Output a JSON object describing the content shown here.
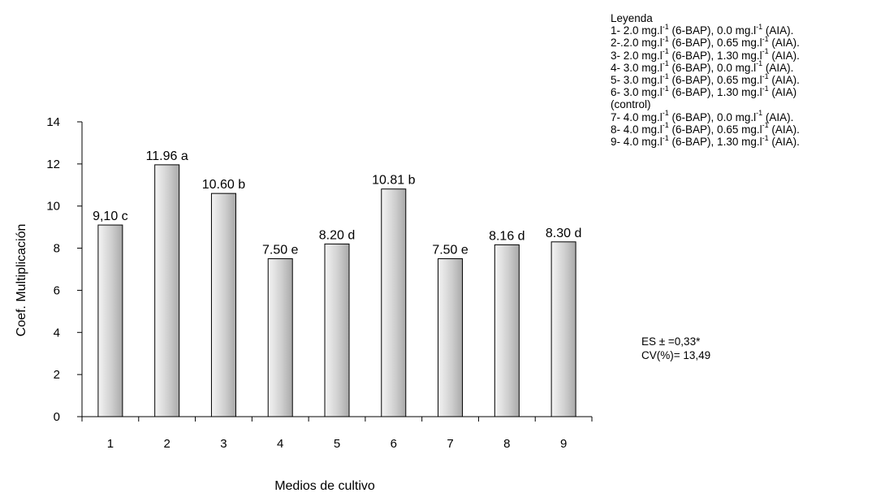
{
  "chart_data": {
    "type": "bar",
    "categories": [
      "1",
      "2",
      "3",
      "4",
      "5",
      "6",
      "7",
      "8",
      "9"
    ],
    "values": [
      9.1,
      11.96,
      10.6,
      7.5,
      8.2,
      10.81,
      7.5,
      8.16,
      8.3
    ],
    "bar_labels": [
      "9,10 c",
      "11.96 a",
      "10.60 b",
      "7.50 e",
      "8.20 d",
      "10.81 b",
      "7.50 e",
      "8.16 d",
      "8.30 d"
    ],
    "title": "",
    "xlabel": "Medios de cultivo",
    "ylabel": "Coef. Multiplicación",
    "ylim": [
      0,
      14
    ],
    "yticks": [
      0,
      2,
      4,
      6,
      8,
      10,
      12,
      14
    ],
    "grid": false,
    "legend_position": "top-right"
  },
  "legend": {
    "title": "Leyenda",
    "items": [
      {
        "pre": "1- 2.0 mg.l",
        "sup1": "-1",
        "mid": " (6-BAP), 0.0  mg.l",
        "sup2": "-1",
        "post": " (AIA)."
      },
      {
        "pre": "2-.2.0 mg.l",
        "sup1": "-1",
        "mid": " (6-BAP), 0.65  mg.l",
        "sup2": "-1",
        "post": " (AIA)."
      },
      {
        "pre": "3- 2.0 mg.l",
        "sup1": "-1",
        "mid": " (6-BAP), 1.30  mg.l",
        "sup2": "-1",
        "post": " (AIA)."
      },
      {
        "pre": "4- 3.0 mg.l",
        "sup1": "-1",
        "mid": " (6-BAP), 0.0  mg.l",
        "sup2": "-1",
        "post": " (AIA)."
      },
      {
        "pre": "5- 3.0 mg.l",
        "sup1": "-1",
        "mid": " (6-BAP), 0.65  mg.l",
        "sup2": "-1",
        "post": " (AIA)."
      },
      {
        "pre": "6- 3.0 mg.l",
        "sup1": "-1",
        "mid": " (6-BAP), 1.30  mg.l",
        "sup2": "-1",
        "post": " (AIA)"
      },
      {
        "pre": "(control)",
        "sup1": "",
        "mid": "",
        "sup2": "",
        "post": ""
      },
      {
        "pre": "7- 4.0 mg.l",
        "sup1": "-1",
        "mid": " (6-BAP), 0.0  mg.l",
        "sup2": "-1",
        "post": " (AIA)."
      },
      {
        "pre": "8- 4.0 mg.l",
        "sup1": "-1",
        "mid": " (6-BAP), 0.65  mg.l",
        "sup2": "-1",
        "post": " (AIA)."
      },
      {
        "pre": "9- 4.0 mg.l",
        "sup1": "-1",
        "mid": " (6-BAP), 1.30  mg.l",
        "sup2": "-1",
        "post": " (AIA)."
      }
    ]
  },
  "stats": {
    "es": "ES ± =0,33*",
    "cv": "CV(%)= 13,49"
  }
}
